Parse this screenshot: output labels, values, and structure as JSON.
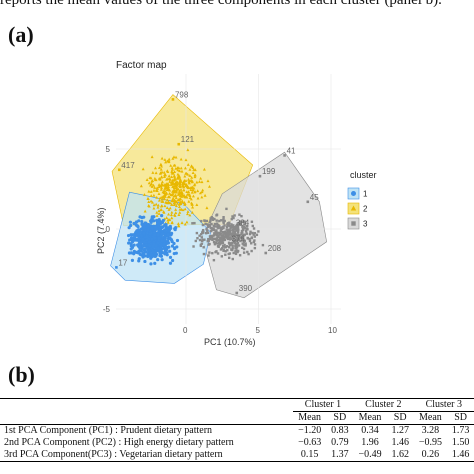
{
  "intro_text": "reports the mean values of the three components in each cluster (panel b).",
  "panel_a_label": "(a)",
  "panel_b_label": "(b)",
  "factor_map": {
    "title": "Factor map",
    "xlabel": "PC1 (10.7%)",
    "ylabel": "PC2 (7.4%)",
    "xticks": [
      {
        "value": 0,
        "label": "0"
      },
      {
        "value": 5,
        "label": "5"
      },
      {
        "value": 10,
        "label": "10"
      }
    ],
    "yticks": [
      {
        "value": 5,
        "label": "5"
      },
      {
        "value": 0,
        "label": "0"
      },
      {
        "value": -5,
        "label": "-5"
      }
    ],
    "legend_title": "cluster",
    "clusters": [
      {
        "label": "1",
        "color": "#3d8fe6",
        "fill": "#bfe3f5",
        "symbol": "circle"
      },
      {
        "label": "2",
        "color": "#e8b800",
        "fill": "#f4e27a",
        "symbol": "triangle"
      },
      {
        "label": "3",
        "color": "#8a8a8a",
        "fill": "#d9d9d9",
        "symbol": "square"
      }
    ],
    "point_labels": [
      {
        "text": "798",
        "x": -0.9,
        "y": 8.1,
        "cluster": "2"
      },
      {
        "text": "41",
        "x": 6.8,
        "y": 4.6,
        "cluster": "3"
      },
      {
        "text": "199",
        "x": 5.1,
        "y": 3.3,
        "cluster": "3"
      },
      {
        "text": "45",
        "x": 8.4,
        "y": 1.7,
        "cluster": "3"
      },
      {
        "text": "417",
        "x": -4.6,
        "y": 3.7,
        "cluster": "2"
      },
      {
        "text": "121",
        "x": -0.5,
        "y": 5.3,
        "cluster": "2"
      },
      {
        "text": "384",
        "x": 3.3,
        "y": 0.1,
        "cluster": "3"
      },
      {
        "text": "376",
        "x": 3.0,
        "y": -0.9,
        "cluster": "3"
      },
      {
        "text": "208",
        "x": 5.5,
        "y": -1.5,
        "cluster": "3"
      },
      {
        "text": "390",
        "x": 3.5,
        "y": -4.0,
        "cluster": "3"
      },
      {
        "text": "17",
        "x": -4.8,
        "y": -2.4,
        "cluster": "1"
      }
    ]
  },
  "table": {
    "cluster_headers": [
      "Cluster 1",
      "Cluster 2",
      "Cluster 3"
    ],
    "sub_headers": [
      "Mean",
      "SD",
      "Mean",
      "SD",
      "Mean",
      "SD"
    ],
    "rows": [
      {
        "name": "1st PCA Component (PC1) : Prudent dietary pattern",
        "values": [
          "−1.20",
          "0.83",
          "0.34",
          "1.27",
          "3.28",
          "1.73"
        ]
      },
      {
        "name": "2nd PCA Component (PC2) : High energy dietary pattern",
        "values": [
          "−0.63",
          "0.79",
          "1.96",
          "1.46",
          "−0.95",
          "1.50"
        ]
      },
      {
        "name": "3rd PCA Component(PC3) : Vegetarian dietary pattern",
        "values": [
          "0.15",
          "1.37",
          "−0.49",
          "1.62",
          "0.26",
          "1.46"
        ]
      }
    ]
  }
}
